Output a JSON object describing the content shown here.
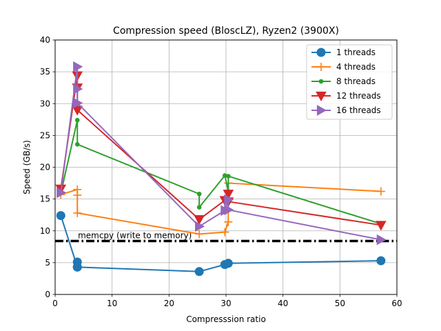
{
  "chart_data": {
    "type": "line",
    "title": "Compression speed (BloscLZ), Ryzen2 (3900X)",
    "xlabel": "Compresssion ratio",
    "ylabel": "Speed (GB/s)",
    "xlim": [
      0,
      60
    ],
    "ylim": [
      0,
      40
    ],
    "xticks": [
      0,
      10,
      20,
      30,
      40,
      50,
      60
    ],
    "yticks": [
      0,
      5,
      10,
      15,
      20,
      25,
      30,
      35,
      40
    ],
    "grid": true,
    "legend_position": "top-right",
    "reference_line": {
      "label": "memcpy (write to memory)",
      "y": 8.4,
      "color": "#000000"
    },
    "series": [
      {
        "name": "1 threads",
        "color": "#1f77b4",
        "marker": "circle",
        "x": [
          1.0,
          3.9,
          3.9,
          3.9,
          25.3,
          29.8,
          30.4,
          57.2
        ],
        "y": [
          12.4,
          4.3,
          5.1,
          4.3,
          3.6,
          4.7,
          4.9,
          5.3
        ]
      },
      {
        "name": "4 threads",
        "color": "#ff7f0e",
        "marker": "plus",
        "x": [
          1.0,
          3.9,
          3.9,
          3.9,
          25.3,
          29.8,
          30.4,
          30.4,
          57.2
        ],
        "y": [
          15.7,
          16.5,
          15.6,
          12.8,
          9.5,
          9.8,
          11.4,
          17.5,
          16.2
        ]
      },
      {
        "name": "8 threads",
        "color": "#2ca02c",
        "marker": "dot",
        "x": [
          1.0,
          3.9,
          3.9,
          25.3,
          25.3,
          29.8,
          30.4,
          30.4,
          57.2
        ],
        "y": [
          15.9,
          27.4,
          23.6,
          15.8,
          13.7,
          18.7,
          16.2,
          18.6,
          11.1
        ]
      },
      {
        "name": "12 threads",
        "color": "#d62728",
        "marker": "triangle-down",
        "x": [
          1.0,
          3.9,
          3.9,
          3.9,
          25.3,
          29.8,
          30.4,
          30.4,
          57.2
        ],
        "y": [
          16.6,
          34.4,
          32.5,
          29.0,
          11.8,
          14.8,
          15.8,
          14.6,
          10.9
        ]
      },
      {
        "name": "16 threads",
        "color": "#9467bd",
        "marker": "triangle-right",
        "x": [
          1.0,
          3.9,
          3.9,
          3.9,
          25.3,
          29.8,
          30.4,
          30.4,
          57.2
        ],
        "y": [
          16.0,
          35.8,
          32.3,
          30.1,
          10.7,
          13.2,
          14.9,
          13.3,
          8.6
        ]
      }
    ]
  }
}
